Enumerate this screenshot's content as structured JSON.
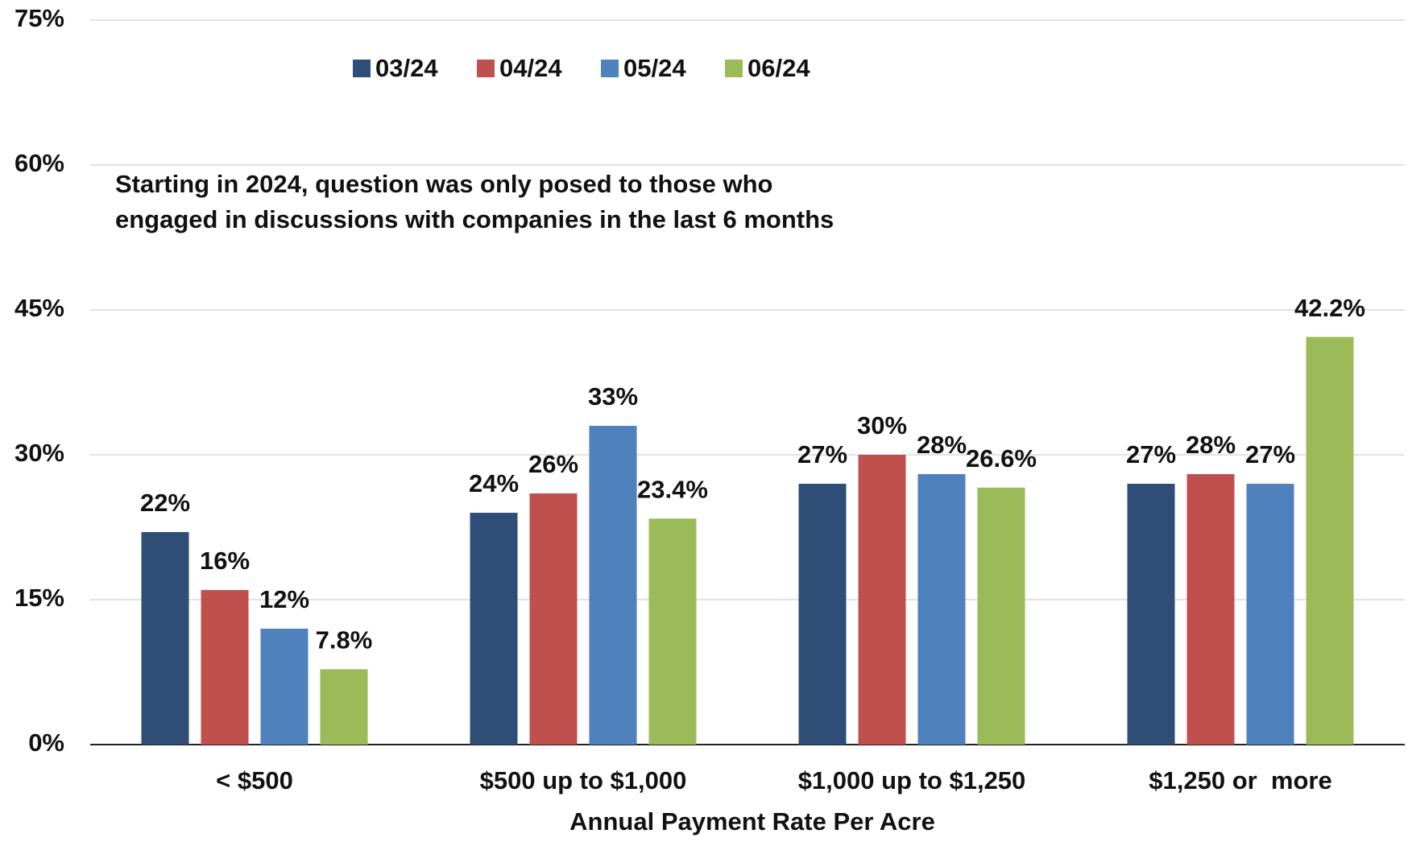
{
  "chart_data": {
    "type": "bar",
    "x_label": "Annual Payment Rate Per Acre",
    "annotation": [
      "Starting in 2024, question was only posed to those who",
      "engaged in discussions with companies in the last 6 months"
    ],
    "categories": [
      "< $500",
      "$500 up to $1,000",
      "$1,000 up to $1,250",
      "$1,250 or  more"
    ],
    "series": [
      {
        "name": "03/24",
        "color": "#2e4e78",
        "values": [
          22,
          24,
          27,
          27
        ],
        "value_labels": [
          "22%",
          "24%",
          "27%",
          "27%"
        ]
      },
      {
        "name": "04/24",
        "color": "#c0504d",
        "values": [
          16,
          26,
          30,
          28
        ],
        "value_labels": [
          "16%",
          "26%",
          "30%",
          "28%"
        ]
      },
      {
        "name": "05/24",
        "color": "#4f81bd",
        "values": [
          12,
          33,
          28,
          27
        ],
        "value_labels": [
          "12%",
          "33%",
          "28%",
          "27%"
        ]
      },
      {
        "name": "06/24",
        "color": "#9bbb59",
        "values": [
          7.8,
          23.4,
          26.6,
          42.2
        ],
        "value_labels": [
          "7.8%",
          "23.4%",
          "26.6%",
          "42.2%"
        ]
      }
    ],
    "ylim": [
      0,
      75
    ],
    "yticks": [
      {
        "value": 0,
        "label": "0%"
      },
      {
        "value": 15,
        "label": "15%"
      },
      {
        "value": 30,
        "label": "30%"
      },
      {
        "value": 45,
        "label": "45%"
      },
      {
        "value": 60,
        "label": "60%"
      },
      {
        "value": 75,
        "label": "75%"
      }
    ],
    "grid": true
  }
}
